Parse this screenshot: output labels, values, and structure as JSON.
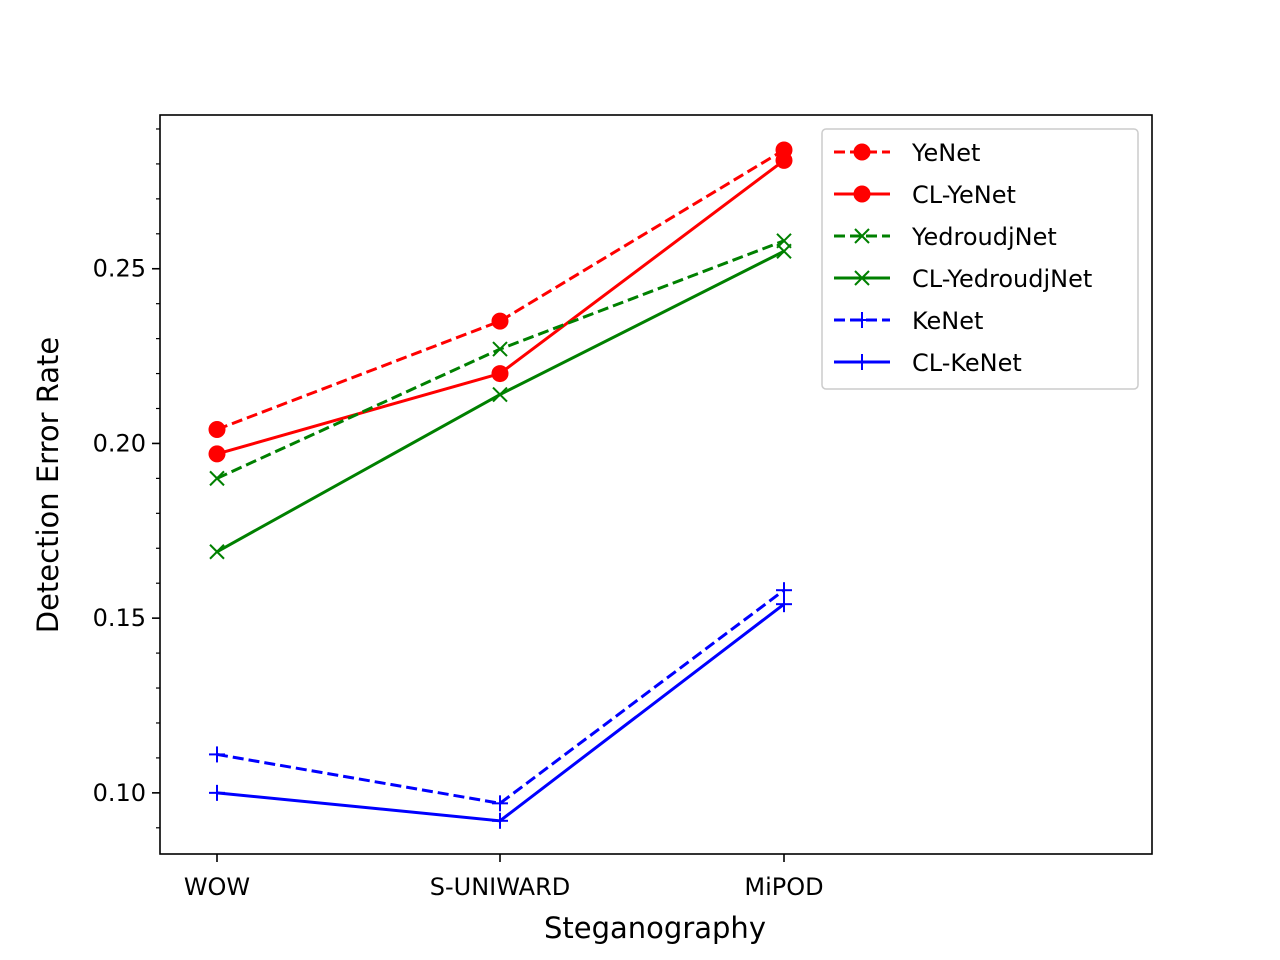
{
  "chart_data": {
    "type": "line",
    "title": "",
    "xlabel": "Steganography",
    "ylabel": "Detection Error Rate",
    "categories": [
      "WOW",
      "S-UNIWARD",
      "MiPOD"
    ],
    "ylim": [
      0.0825,
      0.294
    ],
    "yticks": [
      0.1,
      0.15,
      0.2,
      0.25
    ],
    "ytick_labels": [
      "0.10",
      "0.15",
      "0.20",
      "0.25"
    ],
    "grid": false,
    "legend_position": "top-right",
    "series": [
      {
        "name": "YeNet",
        "color": "#ff0000",
        "linestyle": "dashed",
        "marker": "circle",
        "values": [
          0.204,
          0.235,
          0.284
        ]
      },
      {
        "name": "CL-YeNet",
        "color": "#ff0000",
        "linestyle": "solid",
        "marker": "circle",
        "values": [
          0.197,
          0.22,
          0.281
        ]
      },
      {
        "name": "YedroudjNet",
        "color": "#008000",
        "linestyle": "dashed",
        "marker": "x",
        "values": [
          0.19,
          0.227,
          0.258
        ]
      },
      {
        "name": "CL-YedroudjNet",
        "color": "#008000",
        "linestyle": "solid",
        "marker": "x",
        "values": [
          0.169,
          0.214,
          0.255
        ]
      },
      {
        "name": "KeNet",
        "color": "#0000ff",
        "linestyle": "dashed",
        "marker": "plus",
        "values": [
          0.111,
          0.097,
          0.158
        ]
      },
      {
        "name": "CL-KeNet",
        "color": "#0000ff",
        "linestyle": "solid",
        "marker": "plus",
        "values": [
          0.1,
          0.092,
          0.154
        ]
      }
    ]
  }
}
